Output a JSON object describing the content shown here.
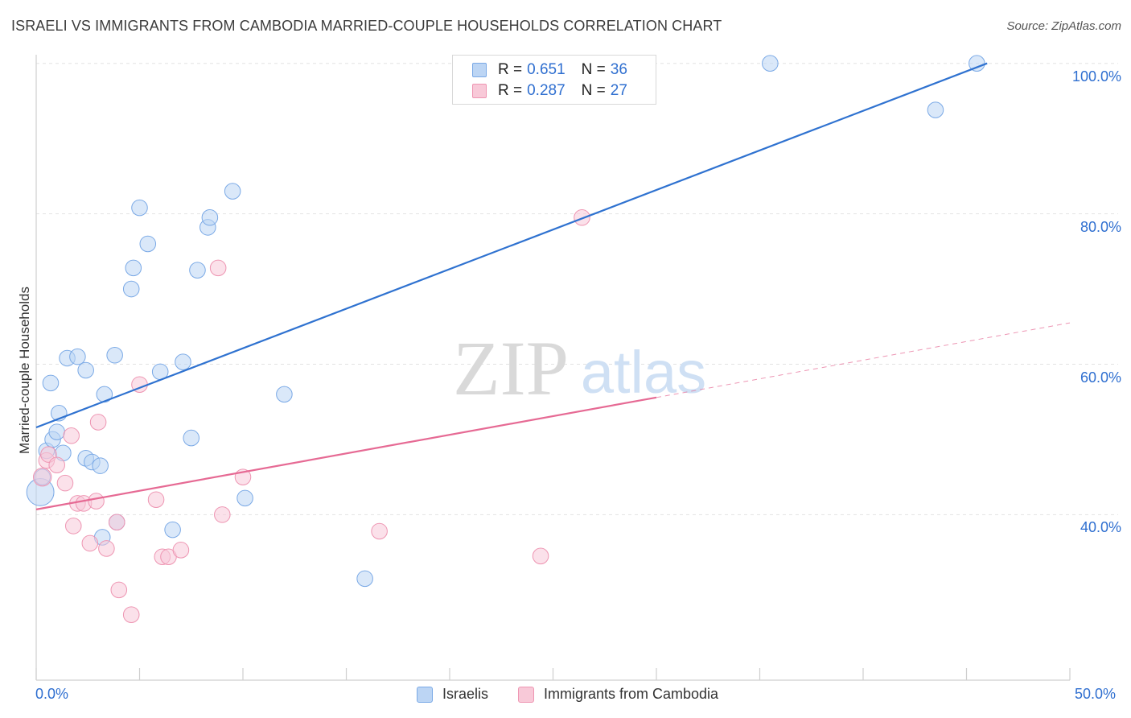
{
  "header": {
    "title": "ISRAELI VS IMMIGRANTS FROM CAMBODIA MARRIED-COUPLE HOUSEHOLDS CORRELATION CHART",
    "source": "Source: ZipAtlas.com"
  },
  "watermark": {
    "zip": "ZIP",
    "atlas": "atlas"
  },
  "legend_top": {
    "rows": [
      {
        "r_label": "R =",
        "r_value": "0.651",
        "n_label": "N =",
        "n_value": "36",
        "color": "#a9c8f0"
      },
      {
        "r_label": "R =",
        "r_value": "0.287",
        "n_label": "N =",
        "n_value": "27",
        "color": "#f4b8cb"
      }
    ]
  },
  "legend_bottom": {
    "items": [
      {
        "label": "Israelis",
        "color": "#a9c8f0"
      },
      {
        "label": "Immigrants from Cambodia",
        "color": "#f4b8cb"
      }
    ]
  },
  "chart_data": {
    "type": "scatter",
    "title": "ISRAELI VS IMMIGRANTS FROM CAMBODIA MARRIED-COUPLE HOUSEHOLDS CORRELATION CHART",
    "xlabel": "",
    "ylabel": "Married-couple Households",
    "xlim": [
      0,
      50
    ],
    "ylim": [
      18,
      102
    ],
    "x_tick_labels": [
      "0.0%",
      "50.0%"
    ],
    "y_ticks": [
      40,
      60,
      80,
      100
    ],
    "y_tick_labels": [
      "40.0%",
      "60.0%",
      "80.0%",
      "100.0%"
    ],
    "grid": true,
    "series": [
      {
        "name": "Israelis",
        "color": "#7aa9e6",
        "fill": "#bcd5f4",
        "line_color": "#2f72d0",
        "trend": {
          "x0": 0,
          "y0": 51.6,
          "x1": 46,
          "y1": 100,
          "dashed_from": null
        },
        "points": [
          [
            0.2,
            43.0,
            22
          ],
          [
            0.3,
            45.0,
            12
          ],
          [
            0.5,
            48.5,
            12
          ],
          [
            0.7,
            57.5,
            12
          ],
          [
            0.8,
            50.0,
            12
          ],
          [
            1.0,
            51.0,
            12
          ],
          [
            1.1,
            53.5,
            12
          ],
          [
            1.3,
            48.2,
            12
          ],
          [
            1.5,
            60.8,
            12
          ],
          [
            2.0,
            61.0,
            12
          ],
          [
            2.4,
            59.2,
            12
          ],
          [
            2.4,
            47.5,
            12
          ],
          [
            2.7,
            47.0,
            12
          ],
          [
            3.1,
            46.5,
            12
          ],
          [
            3.3,
            56.0,
            12
          ],
          [
            3.8,
            61.2,
            12
          ],
          [
            4.6,
            70.0,
            12
          ],
          [
            4.7,
            72.8,
            12
          ],
          [
            5.0,
            80.8,
            12
          ],
          [
            5.4,
            76.0,
            12
          ],
          [
            6.0,
            59.0,
            12
          ],
          [
            6.6,
            38.0,
            12
          ],
          [
            7.1,
            60.3,
            12
          ],
          [
            7.5,
            50.2,
            12
          ],
          [
            7.8,
            72.5,
            12
          ],
          [
            8.3,
            78.2,
            12
          ],
          [
            8.4,
            79.5,
            12
          ],
          [
            9.5,
            83.0,
            12
          ],
          [
            10.1,
            42.2,
            12
          ],
          [
            3.2,
            37.0,
            12
          ],
          [
            3.9,
            39.0,
            12
          ],
          [
            12.0,
            56.0,
            12
          ],
          [
            15.9,
            31.5,
            12
          ],
          [
            35.5,
            100.0,
            12
          ],
          [
            43.5,
            93.8,
            12
          ],
          [
            45.5,
            100.0,
            12
          ]
        ]
      },
      {
        "name": "Immigrants from Cambodia",
        "color": "#ee95b2",
        "fill": "#f8c9d8",
        "line_color": "#e66a94",
        "trend": {
          "x0": 0,
          "y0": 40.7,
          "x1": 50,
          "y1": 65.5,
          "dashed_from": 30
        },
        "points": [
          [
            0.3,
            45.0,
            14
          ],
          [
            0.5,
            47.2,
            12
          ],
          [
            0.6,
            48.0,
            12
          ],
          [
            1.0,
            46.6,
            12
          ],
          [
            1.4,
            44.2,
            12
          ],
          [
            1.7,
            50.5,
            12
          ],
          [
            1.8,
            38.5,
            12
          ],
          [
            2.0,
            41.5,
            12
          ],
          [
            2.3,
            41.5,
            12
          ],
          [
            2.6,
            36.2,
            12
          ],
          [
            3.0,
            52.3,
            12
          ],
          [
            2.9,
            41.8,
            12
          ],
          [
            3.4,
            35.5,
            12
          ],
          [
            3.9,
            39.0,
            12
          ],
          [
            4.0,
            30.0,
            12
          ],
          [
            4.6,
            26.7,
            12
          ],
          [
            5.0,
            57.3,
            12
          ],
          [
            5.8,
            42.0,
            12
          ],
          [
            6.1,
            34.4,
            12
          ],
          [
            6.4,
            34.4,
            12
          ],
          [
            7.0,
            35.3,
            12
          ],
          [
            8.8,
            72.8,
            12
          ],
          [
            9.0,
            40.0,
            12
          ],
          [
            10.0,
            45.0,
            12
          ],
          [
            16.6,
            37.8,
            12
          ],
          [
            24.4,
            34.5,
            12
          ],
          [
            26.4,
            79.5,
            12
          ]
        ]
      }
    ]
  }
}
